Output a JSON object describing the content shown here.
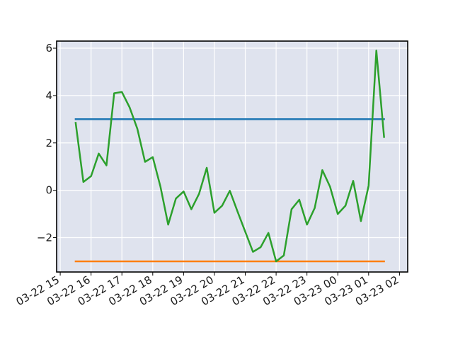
{
  "chart_data": {
    "type": "line",
    "title": "",
    "xlabel": "",
    "ylabel": "",
    "x_axis_type": "datetime",
    "xlim": [
      "2023-03-22 14:53",
      "2023-03-23 02:16"
    ],
    "ylim": [
      -3.45,
      6.3
    ],
    "grid": true,
    "legend": "none",
    "x_tick_labels": [
      "03-22 15",
      "03-22 16",
      "03-22 17",
      "03-22 18",
      "03-22 19",
      "03-22 20",
      "03-22 21",
      "03-22 22",
      "03-22 23",
      "03-23 00",
      "03-23 01",
      "03-23 02"
    ],
    "x_tick_times": [
      "2023-03-22 15:00",
      "2023-03-22 16:00",
      "2023-03-22 17:00",
      "2023-03-22 18:00",
      "2023-03-22 19:00",
      "2023-03-22 20:00",
      "2023-03-22 21:00",
      "2023-03-22 22:00",
      "2023-03-22 23:00",
      "2023-03-23 00:00",
      "2023-03-23 01:00",
      "2023-03-23 02:00"
    ],
    "y_ticks": [
      -2,
      0,
      2,
      4,
      6
    ],
    "y_tick_labels": [
      "−2",
      "0",
      "2",
      "4",
      "6"
    ],
    "series": [
      {
        "color": "#1f77b4",
        "x": [
          "2023-03-22 15:30",
          "2023-03-23 01:30"
        ],
        "values": [
          3.0,
          3.0
        ]
      },
      {
        "color": "#ff7f0e",
        "x": [
          "2023-03-22 15:30",
          "2023-03-23 01:30"
        ],
        "values": [
          -3.0,
          -3.0
        ]
      },
      {
        "color": "#2ca02c",
        "x": [
          "2023-03-22 15:30",
          "2023-03-22 15:45",
          "2023-03-22 16:00",
          "2023-03-22 16:15",
          "2023-03-22 16:30",
          "2023-03-22 16:45",
          "2023-03-22 17:00",
          "2023-03-22 17:15",
          "2023-03-22 17:30",
          "2023-03-22 17:45",
          "2023-03-22 18:00",
          "2023-03-22 18:15",
          "2023-03-22 18:30",
          "2023-03-22 18:45",
          "2023-03-22 19:00",
          "2023-03-22 19:15",
          "2023-03-22 19:30",
          "2023-03-22 19:45",
          "2023-03-22 20:00",
          "2023-03-22 20:15",
          "2023-03-22 20:30",
          "2023-03-22 20:45",
          "2023-03-22 21:00",
          "2023-03-22 21:15",
          "2023-03-22 21:30",
          "2023-03-22 21:45",
          "2023-03-22 22:00",
          "2023-03-22 22:15",
          "2023-03-22 22:30",
          "2023-03-22 22:45",
          "2023-03-22 23:00",
          "2023-03-22 23:15",
          "2023-03-22 23:30",
          "2023-03-22 23:45",
          "2023-03-23 00:00",
          "2023-03-23 00:15",
          "2023-03-23 00:30",
          "2023-03-23 00:45",
          "2023-03-23 01:00",
          "2023-03-23 01:15",
          "2023-03-23 01:30"
        ],
        "values": [
          2.85,
          0.35,
          0.6,
          1.55,
          1.05,
          4.1,
          4.15,
          3.5,
          2.6,
          1.2,
          1.4,
          0.15,
          -1.45,
          -0.35,
          -0.05,
          -0.8,
          -0.15,
          0.95,
          -0.95,
          -0.65,
          -0.02,
          -0.9,
          -1.75,
          -2.6,
          -2.4,
          -1.8,
          -3.0,
          -2.75,
          -0.8,
          -0.4,
          -1.45,
          -0.75,
          0.85,
          0.15,
          -1.0,
          -0.65,
          0.4,
          -1.3,
          0.2,
          5.9,
          2.25
        ]
      }
    ]
  }
}
